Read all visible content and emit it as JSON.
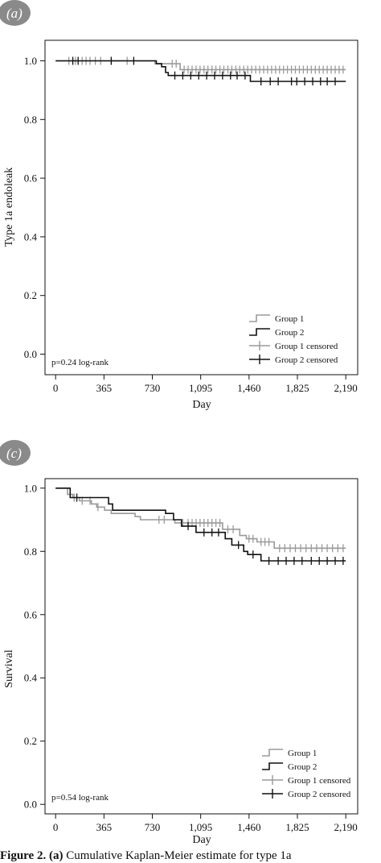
{
  "chart_data": [
    {
      "panel_label": "(a)",
      "type": "line",
      "title": "",
      "xlabel": "Day",
      "ylabel": "Type 1a endoleak",
      "xlim": [
        -80,
        2280
      ],
      "ylim": [
        -0.07,
        1.07
      ],
      "xticks": [
        0,
        365,
        730,
        1095,
        1460,
        1825,
        2190
      ],
      "xtick_labels": [
        "0",
        "365",
        "730",
        "1,095",
        "1,460",
        "1,825",
        "2,190"
      ],
      "yticks": [
        0.0,
        0.2,
        0.4,
        0.6,
        0.8,
        1.0
      ],
      "ytick_labels": [
        "0.0",
        "0.2",
        "0.4",
        "0.6",
        "0.8",
        "1.0"
      ],
      "annotation": "p=0.24 log-rank",
      "legend_position": "bottom-right",
      "legend": [
        "Group 1",
        "Group 2",
        "Group 1 censored",
        "Group 2 censored"
      ],
      "series": [
        {
          "name": "Group 1",
          "color": "#9a9a9a",
          "steps": [
            [
              0,
              1.0
            ],
            [
              750,
              1.0
            ],
            [
              750,
              0.99
            ],
            [
              940,
              0.99
            ],
            [
              940,
              0.97
            ],
            [
              2190,
              0.97
            ]
          ],
          "censored": [
            [
              100,
              1.0
            ],
            [
              150,
              1.0
            ],
            [
              200,
              1.0
            ],
            [
              230,
              1.0
            ],
            [
              260,
              1.0
            ],
            [
              300,
              1.0
            ],
            [
              340,
              1.0
            ],
            [
              420,
              1.0
            ],
            [
              540,
              1.0
            ],
            [
              880,
              0.99
            ],
            [
              910,
              0.99
            ],
            [
              970,
              0.97
            ],
            [
              1000,
              0.97
            ],
            [
              1030,
              0.97
            ],
            [
              1060,
              0.97
            ],
            [
              1090,
              0.97
            ],
            [
              1120,
              0.97
            ],
            [
              1150,
              0.97
            ],
            [
              1180,
              0.97
            ],
            [
              1210,
              0.97
            ],
            [
              1240,
              0.97
            ],
            [
              1270,
              0.97
            ],
            [
              1300,
              0.97
            ],
            [
              1330,
              0.97
            ],
            [
              1360,
              0.97
            ],
            [
              1390,
              0.97
            ],
            [
              1420,
              0.97
            ],
            [
              1450,
              0.97
            ],
            [
              1480,
              0.97
            ],
            [
              1510,
              0.97
            ],
            [
              1540,
              0.97
            ],
            [
              1570,
              0.97
            ],
            [
              1600,
              0.97
            ],
            [
              1630,
              0.97
            ],
            [
              1660,
              0.97
            ],
            [
              1690,
              0.97
            ],
            [
              1720,
              0.97
            ],
            [
              1750,
              0.97
            ],
            [
              1780,
              0.97
            ],
            [
              1810,
              0.97
            ],
            [
              1840,
              0.97
            ],
            [
              1870,
              0.97
            ],
            [
              1900,
              0.97
            ],
            [
              1930,
              0.97
            ],
            [
              1960,
              0.97
            ],
            [
              1990,
              0.97
            ],
            [
              2020,
              0.97
            ],
            [
              2050,
              0.97
            ],
            [
              2080,
              0.97
            ],
            [
              2110,
              0.97
            ],
            [
              2140,
              0.97
            ],
            [
              2170,
              0.97
            ]
          ]
        },
        {
          "name": "Group 2",
          "color": "#111111",
          "steps": [
            [
              0,
              1.0
            ],
            [
              760,
              1.0
            ],
            [
              760,
              0.99
            ],
            [
              800,
              0.99
            ],
            [
              800,
              0.98
            ],
            [
              830,
              0.98
            ],
            [
              830,
              0.96
            ],
            [
              850,
              0.96
            ],
            [
              850,
              0.95
            ],
            [
              1470,
              0.95
            ],
            [
              1470,
              0.93
            ],
            [
              2190,
              0.93
            ]
          ],
          "censored": [
            [
              130,
              1.0
            ],
            [
              170,
              1.0
            ],
            [
              420,
              1.0
            ],
            [
              590,
              1.0
            ],
            [
              900,
              0.95
            ],
            [
              960,
              0.95
            ],
            [
              1020,
              0.95
            ],
            [
              1080,
              0.95
            ],
            [
              1140,
              0.95
            ],
            [
              1200,
              0.95
            ],
            [
              1260,
              0.95
            ],
            [
              1320,
              0.95
            ],
            [
              1370,
              0.95
            ],
            [
              1430,
              0.95
            ],
            [
              1550,
              0.93
            ],
            [
              1620,
              0.93
            ],
            [
              1680,
              0.93
            ],
            [
              1780,
              0.93
            ],
            [
              1820,
              0.93
            ],
            [
              1880,
              0.93
            ],
            [
              1940,
              0.93
            ],
            [
              2000,
              0.93
            ],
            [
              2050,
              0.93
            ],
            [
              2110,
              0.93
            ]
          ]
        }
      ]
    },
    {
      "panel_label": "(c)",
      "type": "line",
      "title": "",
      "xlabel": "Day",
      "ylabel": "Survival",
      "xlim": [
        -80,
        2280
      ],
      "ylim": [
        -0.03,
        1.03
      ],
      "xticks": [
        0,
        365,
        730,
        1095,
        1460,
        1825,
        2190
      ],
      "xtick_labels": [
        "0",
        "365",
        "730",
        "1,095",
        "1,460",
        "1,825",
        "2,190"
      ],
      "yticks": [
        0.0,
        0.2,
        0.4,
        0.6,
        0.8,
        1.0
      ],
      "ytick_labels": [
        "0.0",
        "0.2",
        "0.4",
        "0.6",
        "0.8",
        "1.0"
      ],
      "annotation": "p=0.54 log-rank",
      "legend_position": "bottom-right",
      "legend": [
        "Group 1",
        "Group 2",
        "Group 1 censored",
        "Group 2 censored"
      ],
      "series": [
        {
          "name": "Group 1",
          "color": "#9a9a9a",
          "steps": [
            [
              0,
              1.0
            ],
            [
              90,
              1.0
            ],
            [
              90,
              0.98
            ],
            [
              130,
              0.98
            ],
            [
              130,
              0.97
            ],
            [
              180,
              0.97
            ],
            [
              180,
              0.96
            ],
            [
              270,
              0.96
            ],
            [
              270,
              0.95
            ],
            [
              310,
              0.95
            ],
            [
              310,
              0.94
            ],
            [
              370,
              0.94
            ],
            [
              370,
              0.93
            ],
            [
              420,
              0.93
            ],
            [
              420,
              0.92
            ],
            [
              600,
              0.92
            ],
            [
              600,
              0.91
            ],
            [
              640,
              0.91
            ],
            [
              640,
              0.9
            ],
            [
              900,
              0.9
            ],
            [
              900,
              0.89
            ],
            [
              1260,
              0.89
            ],
            [
              1260,
              0.87
            ],
            [
              1390,
              0.87
            ],
            [
              1390,
              0.85
            ],
            [
              1440,
              0.85
            ],
            [
              1440,
              0.84
            ],
            [
              1520,
              0.84
            ],
            [
              1520,
              0.83
            ],
            [
              1650,
              0.83
            ],
            [
              1650,
              0.81
            ],
            [
              2190,
              0.81
            ]
          ],
          "censored": [
            [
              140,
              0.97
            ],
            [
              200,
              0.96
            ],
            [
              260,
              0.96
            ],
            [
              320,
              0.94
            ],
            [
              780,
              0.9
            ],
            [
              820,
              0.9
            ],
            [
              960,
              0.89
            ],
            [
              1000,
              0.89
            ],
            [
              1030,
              0.89
            ],
            [
              1060,
              0.89
            ],
            [
              1090,
              0.89
            ],
            [
              1120,
              0.89
            ],
            [
              1150,
              0.89
            ],
            [
              1180,
              0.89
            ],
            [
              1210,
              0.89
            ],
            [
              1240,
              0.89
            ],
            [
              1300,
              0.87
            ],
            [
              1340,
              0.87
            ],
            [
              1460,
              0.84
            ],
            [
              1490,
              0.84
            ],
            [
              1550,
              0.83
            ],
            [
              1580,
              0.83
            ],
            [
              1610,
              0.83
            ],
            [
              1690,
              0.81
            ],
            [
              1730,
              0.81
            ],
            [
              1770,
              0.81
            ],
            [
              1810,
              0.81
            ],
            [
              1850,
              0.81
            ],
            [
              1890,
              0.81
            ],
            [
              1930,
              0.81
            ],
            [
              1970,
              0.81
            ],
            [
              2010,
              0.81
            ],
            [
              2050,
              0.81
            ],
            [
              2090,
              0.81
            ],
            [
              2130,
              0.81
            ],
            [
              2170,
              0.81
            ]
          ]
        },
        {
          "name": "Group 2",
          "color": "#111111",
          "steps": [
            [
              0,
              1.0
            ],
            [
              110,
              1.0
            ],
            [
              110,
              0.97
            ],
            [
              400,
              0.97
            ],
            [
              400,
              0.95
            ],
            [
              430,
              0.95
            ],
            [
              430,
              0.93
            ],
            [
              830,
              0.93
            ],
            [
              830,
              0.92
            ],
            [
              890,
              0.92
            ],
            [
              890,
              0.9
            ],
            [
              950,
              0.9
            ],
            [
              950,
              0.88
            ],
            [
              1060,
              0.88
            ],
            [
              1060,
              0.86
            ],
            [
              1280,
              0.86
            ],
            [
              1280,
              0.84
            ],
            [
              1330,
              0.84
            ],
            [
              1330,
              0.82
            ],
            [
              1420,
              0.82
            ],
            [
              1420,
              0.8
            ],
            [
              1450,
              0.8
            ],
            [
              1450,
              0.79
            ],
            [
              1550,
              0.79
            ],
            [
              1550,
              0.77
            ],
            [
              2190,
              0.77
            ]
          ],
          "censored": [
            [
              160,
              0.97
            ],
            [
              1000,
              0.88
            ],
            [
              1120,
              0.86
            ],
            [
              1180,
              0.86
            ],
            [
              1230,
              0.86
            ],
            [
              1380,
              0.82
            ],
            [
              1490,
              0.79
            ],
            [
              1610,
              0.77
            ],
            [
              1680,
              0.77
            ],
            [
              1740,
              0.77
            ],
            [
              1800,
              0.77
            ],
            [
              1860,
              0.77
            ],
            [
              1930,
              0.77
            ],
            [
              1990,
              0.77
            ],
            [
              2050,
              0.77
            ],
            [
              2110,
              0.77
            ],
            [
              2170,
              0.77
            ]
          ]
        }
      ]
    }
  ],
  "caption": {
    "lead": "Figure 2.",
    "panel": "(a)",
    "text": "Cumulative Kaplan-Meier estimate for type 1a"
  }
}
